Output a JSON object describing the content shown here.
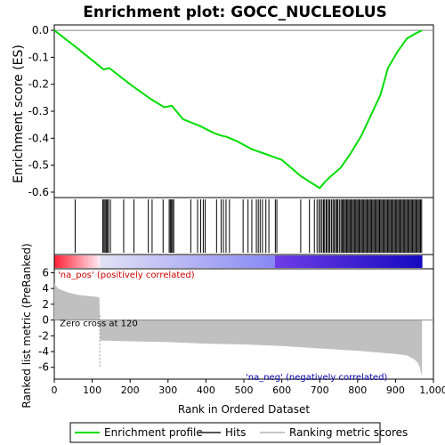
{
  "chart_data": {
    "type": "line",
    "title": "Enrichment plot: GOCC_NUCLEOLUS",
    "es_panel": {
      "ylabel": "Enrichment score (ES)",
      "ylim": [
        -0.62,
        0.02
      ],
      "yticks": [
        0.0,
        -0.1,
        -0.2,
        -0.3,
        -0.4,
        -0.5,
        -0.6
      ],
      "ytick_labels": [
        "0.0",
        "-0.1",
        "-0.2",
        "-0.3",
        "-0.4",
        "-0.5",
        "-0.6"
      ],
      "series": [
        {
          "name": "Enrichment profile",
          "color": "#00dd00",
          "x": [
            0,
            55,
            130,
            145,
            200,
            255,
            290,
            310,
            340,
            385,
            420,
            440,
            455,
            480,
            520,
            560,
            600,
            650,
            700,
            715,
            730,
            755,
            780,
            810,
            830,
            860,
            880,
            905,
            930,
            955,
            970
          ],
          "y": [
            0.0,
            -0.06,
            -0.145,
            -0.14,
            -0.2,
            -0.255,
            -0.285,
            -0.28,
            -0.33,
            -0.355,
            -0.38,
            -0.39,
            -0.395,
            -0.41,
            -0.44,
            -0.46,
            -0.48,
            -0.54,
            -0.585,
            -0.56,
            -0.54,
            -0.51,
            -0.46,
            -0.39,
            -0.33,
            -0.24,
            -0.14,
            -0.08,
            -0.03,
            -0.01,
            0.0
          ]
        }
      ]
    },
    "hits": {
      "name": "Hits",
      "color": "#000000",
      "positions": [
        55,
        128,
        131,
        134,
        137,
        140,
        143,
        148,
        183,
        210,
        248,
        258,
        287,
        303,
        306,
        309,
        312,
        315,
        360,
        378,
        386,
        393,
        398,
        428,
        440,
        446,
        453,
        462,
        498,
        511,
        521,
        533,
        538,
        543,
        549,
        558,
        566,
        583,
        587,
        650,
        673,
        686,
        693,
        698,
        702,
        706,
        710,
        713,
        717,
        720,
        724,
        727,
        731,
        735,
        738,
        742,
        745,
        748,
        752,
        756,
        759,
        762,
        765,
        768,
        771,
        774,
        777,
        780,
        783,
        786,
        789,
        792,
        795,
        798,
        801,
        804,
        807,
        810,
        813,
        816,
        819,
        822,
        825,
        828,
        831,
        834,
        837,
        840,
        843,
        846,
        849,
        852,
        855,
        858,
        861,
        864,
        867,
        870,
        873,
        876,
        879,
        882,
        885,
        888,
        891,
        894,
        897,
        900,
        903,
        906,
        909,
        912,
        915,
        918,
        921,
        924,
        927,
        930,
        933,
        936,
        939,
        942,
        945,
        948,
        951,
        954,
        957,
        960,
        963,
        966,
        969
      ]
    },
    "ranked_metric": {
      "name": "Ranking metric scores",
      "color": "#c0c0c0",
      "ylabel": "Ranked list metric (PreRanked)",
      "xlabel": "Rank in Ordered Dataset",
      "ylim": [
        -7.5,
        6.5
      ],
      "yticks": [
        6,
        4,
        2,
        0,
        -2,
        -4,
        -6
      ],
      "ytick_labels": [
        "6",
        "4",
        "2",
        "0",
        "-2",
        "-4",
        "-6"
      ],
      "xlim": [
        0,
        1000
      ],
      "xticks": [
        0,
        100,
        200,
        300,
        400,
        500,
        600,
        700,
        800,
        900,
        1000
      ],
      "xtick_labels": [
        "0",
        "100",
        "200",
        "300",
        "400",
        "500",
        "600",
        "700",
        "800",
        "900",
        "1,000"
      ],
      "x": [
        0,
        10,
        30,
        60,
        100,
        119,
        121,
        200,
        300,
        400,
        500,
        600,
        700,
        800,
        850,
        900,
        930,
        950,
        960,
        965,
        970
      ],
      "y": [
        4.6,
        4.0,
        3.6,
        3.2,
        3.0,
        2.9,
        -2.6,
        -2.7,
        -2.8,
        -3.0,
        -3.1,
        -3.3,
        -3.6,
        -3.9,
        -4.1,
        -4.3,
        -4.5,
        -5.0,
        -5.5,
        -6.2,
        -7.2
      ]
    },
    "zero_cross_label": "Zero cross at 120",
    "zero_cross": 120,
    "pos_label": "'na_pos' (positively correlated)",
    "neg_label": "'na_neg' (negatively correlated)",
    "pos_color": "#ff0000",
    "neg_color": "#0000cc",
    "n_ranked": 970,
    "legend": {
      "position": "bottom",
      "items": [
        "Enrichment profile",
        "Hits",
        "Ranking metric scores"
      ]
    }
  }
}
